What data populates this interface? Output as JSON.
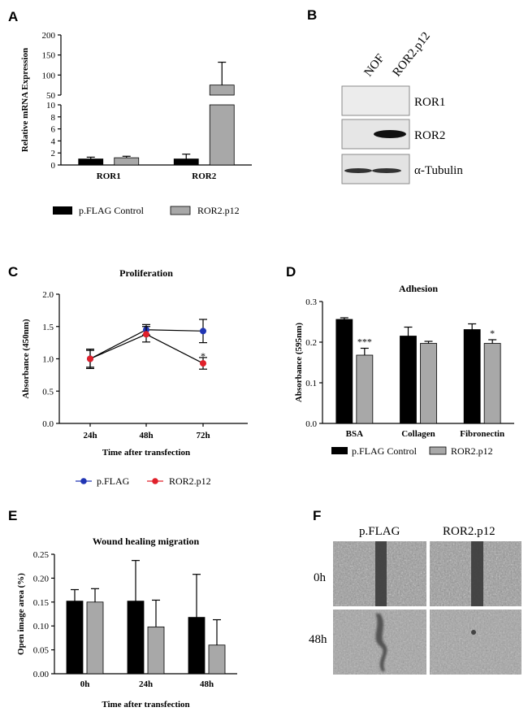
{
  "colors": {
    "control": "#000000",
    "treated": "#a8a8a8",
    "blue": "#2035b4",
    "red": "#e0202a"
  },
  "panels": {
    "A": {
      "letter": "A"
    },
    "B": {
      "letter": "B"
    },
    "C": {
      "letter": "C"
    },
    "D": {
      "letter": "D"
    },
    "E": {
      "letter": "E"
    },
    "F": {
      "letter": "F"
    }
  },
  "legends": {
    "ab": {
      "control": "p.FLAG  Control",
      "treated": "ROR2.p12"
    },
    "c": {
      "control": "p.FLAG",
      "treated": "ROR2.p12"
    },
    "d": {
      "control": "p.FLAG  Control",
      "treated": "ROR2.p12"
    }
  },
  "blot": {
    "lanes": [
      "NOF",
      "ROR2.p12"
    ],
    "rows": [
      "ROR1",
      "ROR2",
      "α-Tubulin"
    ]
  },
  "wound_images": {
    "columns": [
      "p.FLAG",
      "ROR2.p12"
    ],
    "rows": [
      "0h",
      "48h"
    ]
  },
  "chart_data": [
    {
      "id": "A",
      "type": "bar",
      "title": "",
      "xlabel": "",
      "ylabel": "Relative mRNA Expression",
      "categories": [
        "ROR1",
        "ROR2"
      ],
      "series": [
        {
          "name": "p.FLAG  Control",
          "values": [
            1.0,
            1.0
          ],
          "errors": [
            0.3,
            0.8
          ]
        },
        {
          "name": "ROR2.p12",
          "values": [
            1.2,
            75
          ],
          "errors": [
            0.25,
            57
          ]
        }
      ],
      "axis_break": {
        "lower": [
          0,
          10
        ],
        "upper": [
          50,
          200
        ]
      },
      "yticks_lower": [
        "0",
        "2",
        "4",
        "6",
        "8",
        "10"
      ],
      "yticks_upper": [
        "50",
        "100",
        "150",
        "200"
      ]
    },
    {
      "id": "C",
      "type": "line",
      "title": "Proliferation",
      "xlabel": "Time after transfection",
      "ylabel": "Absorbance (450nm)",
      "categories": [
        "24h",
        "48h",
        "72h"
      ],
      "series": [
        {
          "name": "p.FLAG",
          "values": [
            1.0,
            1.45,
            1.43
          ],
          "errors": [
            0.15,
            0.08,
            0.18
          ]
        },
        {
          "name": "ROR2.p12",
          "values": [
            1.0,
            1.38,
            0.93
          ],
          "errors": [
            0.13,
            0.12,
            0.09
          ]
        }
      ],
      "ylim": [
        0,
        2.0
      ],
      "yticks": [
        "0.0",
        "0.5",
        "1.0",
        "1.5",
        "2.0"
      ],
      "annotations": [
        {
          "category": "72h",
          "text": "*"
        }
      ]
    },
    {
      "id": "D",
      "type": "bar",
      "title": "Adhesion",
      "xlabel": "",
      "ylabel": "Absorbance (595nm)",
      "categories": [
        "BSA",
        "Collagen",
        "Fibronectin"
      ],
      "series": [
        {
          "name": "p.FLAG  Control",
          "values": [
            0.256,
            0.215,
            0.231
          ],
          "errors": [
            0.004,
            0.022,
            0.014
          ]
        },
        {
          "name": "ROR2.p12",
          "values": [
            0.168,
            0.197,
            0.197
          ],
          "errors": [
            0.017,
            0.005,
            0.009
          ]
        }
      ],
      "ylim": [
        0,
        0.3
      ],
      "yticks": [
        "0.0",
        "0.1",
        "0.2",
        "0.3"
      ],
      "annotations": [
        {
          "category": "BSA",
          "text": "***"
        },
        {
          "category": "Fibronectin",
          "text": "*"
        }
      ]
    },
    {
      "id": "E",
      "type": "bar",
      "title": "Wound healing migration",
      "xlabel": "Time after transfection",
      "ylabel": "Open image area (%)",
      "categories": [
        "0h",
        "24h",
        "48h"
      ],
      "series": [
        {
          "name": "p.FLAG",
          "values": [
            0.152,
            0.152,
            0.118
          ],
          "errors": [
            0.024,
            0.085,
            0.09
          ]
        },
        {
          "name": "ROR2.p12",
          "values": [
            0.15,
            0.098,
            0.06
          ],
          "errors": [
            0.028,
            0.056,
            0.053
          ]
        }
      ],
      "ylim": [
        0,
        0.25
      ],
      "yticks": [
        "0.00",
        "0.05",
        "0.10",
        "0.15",
        "0.20",
        "0.25"
      ]
    }
  ]
}
